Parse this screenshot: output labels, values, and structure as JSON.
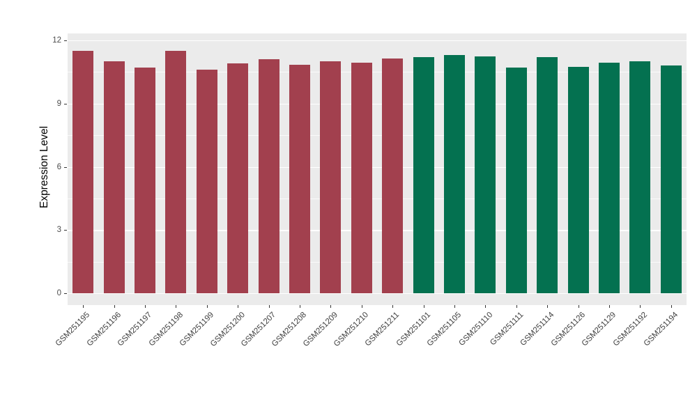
{
  "chart_data": {
    "type": "bar",
    "title": "",
    "xlabel": "",
    "ylabel": "Expression Level",
    "ylim": [
      0,
      12
    ],
    "yticks": [
      0,
      3,
      6,
      9,
      12
    ],
    "grid": "on",
    "legend_position": "none",
    "panel_background": "#EBEBEB",
    "gridline_color": "#FFFFFF",
    "categories": [
      "GSM251195",
      "GSM251196",
      "GSM251197",
      "GSM251198",
      "GSM251199",
      "GSM251200",
      "GSM251207",
      "GSM251208",
      "GSM251209",
      "GSM251210",
      "GSM251211",
      "GSM251101",
      "GSM251105",
      "GSM251110",
      "GSM251111",
      "GSM251114",
      "GSM251126",
      "GSM251129",
      "GSM251192",
      "GSM251194"
    ],
    "values": [
      11.5,
      11.0,
      10.7,
      11.5,
      10.6,
      10.9,
      11.1,
      10.85,
      11.0,
      10.95,
      11.15,
      11.2,
      11.3,
      11.25,
      10.7,
      11.2,
      10.75,
      10.95,
      11.0,
      10.8
    ],
    "bar_colors": [
      "#A2404E",
      "#A2404E",
      "#A2404E",
      "#A2404E",
      "#A2404E",
      "#A2404E",
      "#A2404E",
      "#A2404E",
      "#A2404E",
      "#A2404E",
      "#A2404E",
      "#047150",
      "#047150",
      "#047150",
      "#047150",
      "#047150",
      "#047150",
      "#047150",
      "#047150",
      "#047150"
    ],
    "groups": [
      {
        "color": "#A2404E",
        "count": 11
      },
      {
        "color": "#047150",
        "count": 9
      }
    ]
  }
}
